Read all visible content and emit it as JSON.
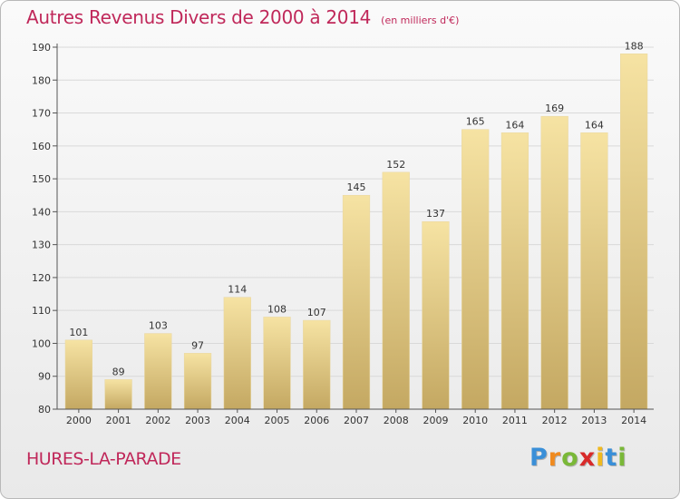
{
  "colors": {
    "title": "#c0285a",
    "bar_top": "#f6e3a3",
    "bar_bottom": "#c4a862",
    "axis": "#555555",
    "grid": "#d9d9d9"
  },
  "footer": {
    "location": "HURES-LA-PARADE",
    "brand_letters": [
      "P",
      "r",
      "o",
      "x",
      "i",
      "t",
      "i"
    ],
    "brand_colors": [
      "#3a8fd8",
      "#f08a1e",
      "#7ab838",
      "#d82a2a",
      "#f0b91e",
      "#3a8fd8",
      "#7ab838"
    ]
  },
  "chart_data": {
    "type": "bar",
    "title": "Autres Revenus Divers de 2000 à 2014",
    "subtitle": "(en milliers d'€)",
    "categories": [
      "2000",
      "2001",
      "2002",
      "2003",
      "2004",
      "2005",
      "2006",
      "2007",
      "2008",
      "2009",
      "2010",
      "2011",
      "2012",
      "2013",
      "2014"
    ],
    "values": [
      101,
      89,
      103,
      97,
      114,
      108,
      107,
      145,
      152,
      137,
      165,
      164,
      169,
      164,
      188
    ],
    "data_labels": [
      "101",
      "89",
      "103",
      "97",
      "114",
      "108",
      "107",
      "145",
      "152",
      "137",
      "165",
      "164",
      "169",
      "164",
      "188"
    ],
    "ylim": [
      80,
      190
    ],
    "yticks": [
      80,
      90,
      100,
      110,
      120,
      130,
      140,
      150,
      160,
      170,
      180,
      190
    ],
    "grid": true,
    "xlabel": "",
    "ylabel": ""
  }
}
